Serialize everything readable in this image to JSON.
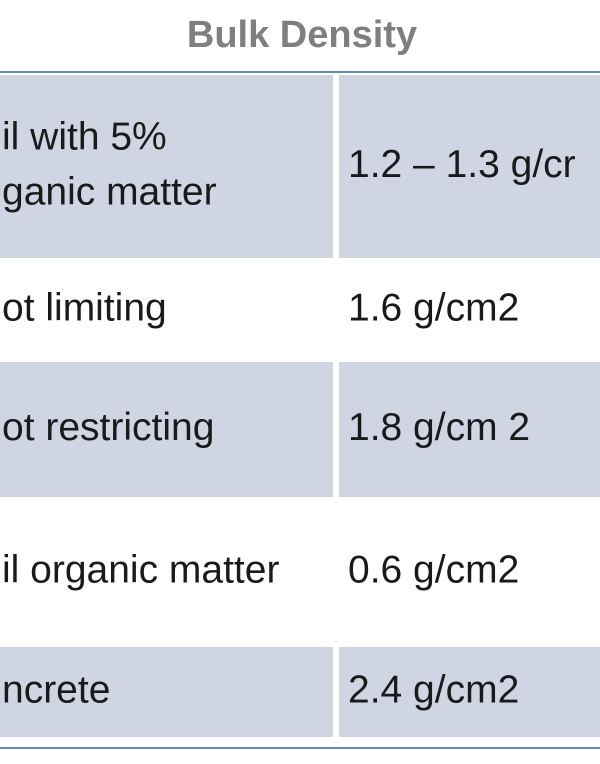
{
  "table": {
    "header": "Bulk Density",
    "rows": [
      [
        [
          "il with 5%",
          "ganic matter"
        ],
        [
          "1.2 – 1.3 g/cr"
        ]
      ],
      [
        [
          "ot limiting"
        ],
        [
          "1.6 g/cm2"
        ]
      ],
      [
        [
          "ot restricting"
        ],
        [
          "1.8 g/cm 2"
        ]
      ],
      [
        [
          "il organic matter"
        ],
        [
          "0.6 g/cm2"
        ]
      ],
      [
        [
          "ncrete"
        ],
        [
          "2.4 g/cm2"
        ]
      ]
    ]
  }
}
